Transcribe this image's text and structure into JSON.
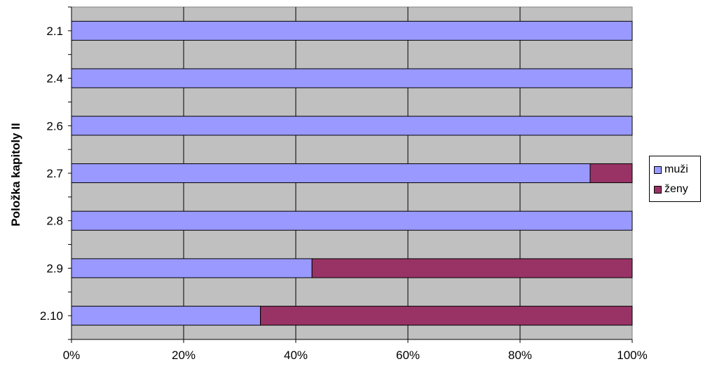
{
  "chart_data": {
    "type": "bar",
    "orientation": "horizontal",
    "stacked": "percent",
    "categories": [
      "2.1",
      "2.4",
      "2.6",
      "2.7",
      "2.8",
      "2.9",
      "2.10"
    ],
    "series": [
      {
        "name": "muži",
        "color": "#9999FF",
        "values": [
          100,
          100,
          100,
          92.5,
          100,
          42.9,
          33.7
        ]
      },
      {
        "name": "ženy",
        "color": "#993366",
        "values": [
          0,
          0,
          0,
          7.5,
          0,
          57.1,
          66.3
        ]
      }
    ],
    "xticks": [
      "0%",
      "20%",
      "40%",
      "60%",
      "80%",
      "100%"
    ],
    "xlim": [
      0,
      100
    ],
    "ylabel": "Položka kapitoly II",
    "xlabel": "",
    "grid": true,
    "plot_background": "#C0C0C0",
    "legend_position": "right"
  }
}
